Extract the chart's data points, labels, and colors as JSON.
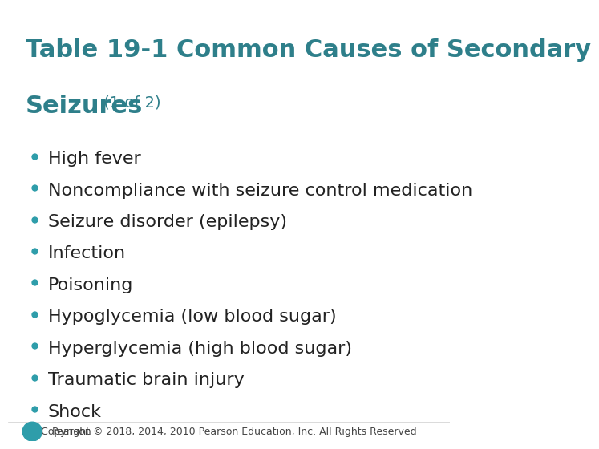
{
  "title_line1": "Table 19-1 Common Causes of Secondary",
  "title_line2": "Seizures",
  "title_subtitle": " (1 of 2)",
  "title_color": "#2E7F8A",
  "bullet_color": "#2E9DAA",
  "text_color": "#222222",
  "background_color": "#FFFFFF",
  "bullet_items": [
    "High fever",
    "Noncompliance with seizure control medication",
    "Seizure disorder (epilepsy)",
    "Infection",
    "Poisoning",
    "Hypoglycemia (low blood sugar)",
    "Hyperglycemia (high blood sugar)",
    "Traumatic brain injury",
    "Shock"
  ],
  "footer_text": "Copyright © 2018, 2014, 2010 Pearson Education, Inc. All Rights Reserved",
  "footer_color": "#444444",
  "title_fontsize": 22,
  "subtitle_fontsize": 14,
  "bullet_fontsize": 16,
  "footer_fontsize": 9,
  "pearson_text": "Pearson",
  "pearson_logo_color": "#2E9DAA"
}
